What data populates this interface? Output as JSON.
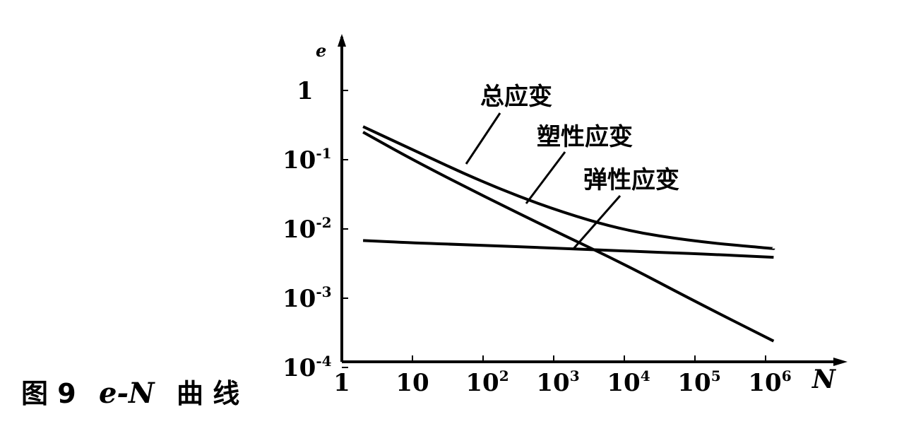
{
  "caption": {
    "figure_number": "图 9",
    "title_math": "e-N",
    "title_text": "曲 线"
  },
  "chart_data": {
    "type": "line",
    "title": "图 9  e-N 曲线",
    "xlabel": "N",
    "ylabel": "e",
    "x_scale": "log",
    "y_scale": "log",
    "xlim": [
      1,
      1000000
    ],
    "ylim": [
      0.0001,
      1
    ],
    "x_ticks": [
      {
        "value": 1,
        "base": "1",
        "exp": ""
      },
      {
        "value": 10,
        "base": "10",
        "exp": ""
      },
      {
        "value": 100,
        "base": "10",
        "exp": "2"
      },
      {
        "value": 1000,
        "base": "10",
        "exp": "3"
      },
      {
        "value": 10000,
        "base": "10",
        "exp": "4"
      },
      {
        "value": 100000,
        "base": "10",
        "exp": "5"
      },
      {
        "value": 1000000,
        "base": "10",
        "exp": "6"
      }
    ],
    "y_ticks": [
      {
        "value": 1,
        "base": "1",
        "exp": ""
      },
      {
        "value": 0.1,
        "base": "10",
        "exp": "-1"
      },
      {
        "value": 0.01,
        "base": "10",
        "exp": "-2"
      },
      {
        "value": 0.001,
        "base": "10",
        "exp": "-3"
      },
      {
        "value": 0.0001,
        "base": "10",
        "exp": "-4"
      }
    ],
    "series": [
      {
        "name": "总应变",
        "x": [
          2,
          10,
          100,
          1000,
          10000,
          100000,
          1300000
        ],
        "y": [
          0.3,
          0.14,
          0.047,
          0.019,
          0.0095,
          0.0066,
          0.0052
        ]
      },
      {
        "name": "塑性应变",
        "x": [
          2,
          10,
          100,
          1000,
          10000,
          100000,
          1300000
        ],
        "y": [
          0.25,
          0.1,
          0.03,
          0.0095,
          0.0031,
          0.0009,
          0.00024
        ]
      },
      {
        "name": "弹性应变",
        "x": [
          2,
          10,
          100,
          1000,
          10000,
          100000,
          1300000
        ],
        "y": [
          0.0068,
          0.0063,
          0.0058,
          0.0053,
          0.0048,
          0.0044,
          0.0039
        ]
      }
    ],
    "grid": false,
    "legend": "inline leader-line labels"
  }
}
